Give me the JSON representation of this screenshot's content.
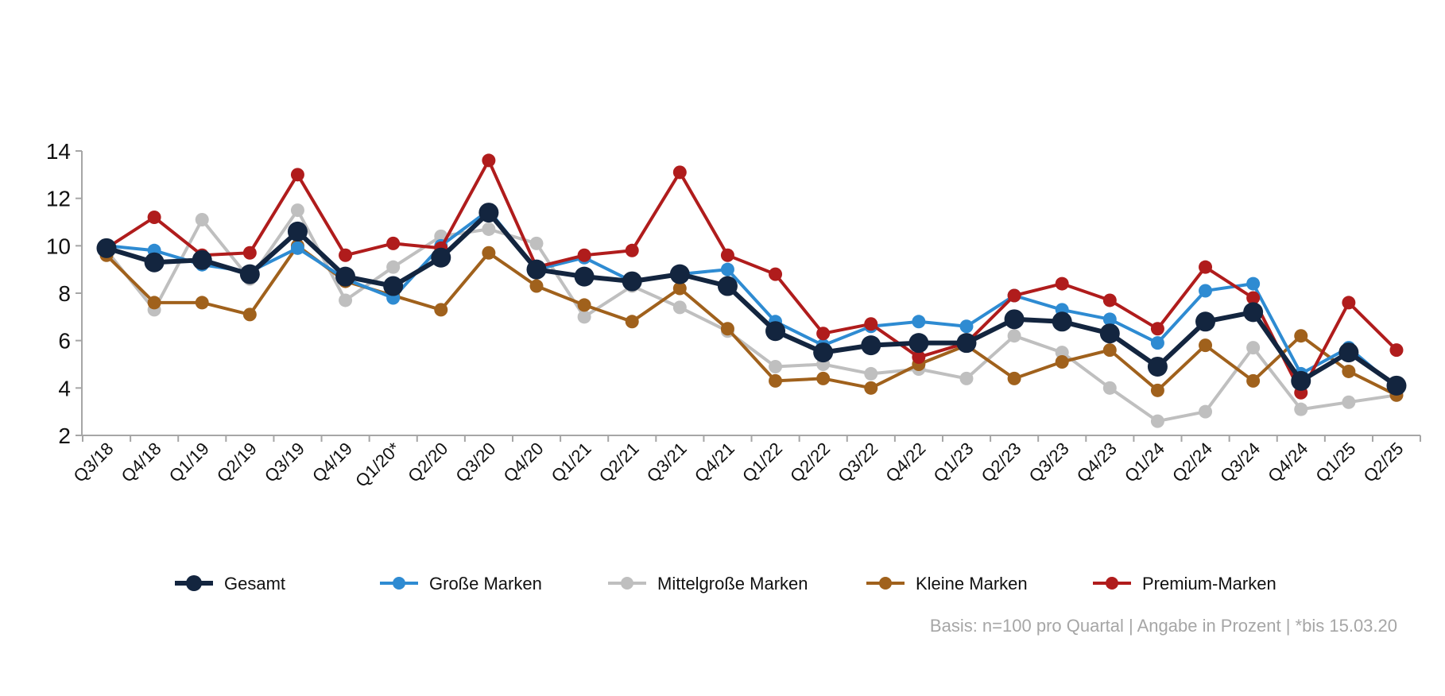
{
  "chart_data": {
    "type": "line",
    "categories": [
      "Q3/18",
      "Q4/18",
      "Q1/19",
      "Q2/19",
      "Q3/19",
      "Q4/19",
      "Q1/20*",
      "Q2/20",
      "Q3/20",
      "Q4/20",
      "Q1/21",
      "Q2/21",
      "Q3/21",
      "Q4/21",
      "Q1/22",
      "Q2/22",
      "Q3/22",
      "Q4/22",
      "Q1/23",
      "Q2/23",
      "Q3/23",
      "Q4/23",
      "Q1/24",
      "Q2/24",
      "Q3/24",
      "Q4/24",
      "Q1/25",
      "Q2/25"
    ],
    "ylim": [
      2,
      14
    ],
    "yticks": [
      2,
      4,
      6,
      8,
      10,
      12,
      14
    ],
    "grid": false,
    "legend_position": "bottom",
    "series": [
      {
        "name": "Mittelgroße Marken",
        "color": "#bfbfbf",
        "values": [
          9.8,
          7.3,
          11.1,
          8.6,
          11.5,
          7.7,
          9.1,
          10.4,
          10.7,
          10.1,
          7.0,
          8.3,
          7.4,
          6.4,
          4.9,
          5.0,
          4.6,
          4.8,
          4.4,
          6.2,
          5.5,
          4.0,
          2.6,
          3.0,
          5.7,
          3.1,
          3.4,
          3.7
        ]
      },
      {
        "name": "Kleine Marken",
        "color": "#a0611c",
        "values": [
          9.6,
          7.6,
          7.6,
          7.1,
          10.0,
          8.5,
          7.9,
          7.3,
          9.7,
          8.3,
          7.5,
          6.8,
          8.2,
          6.5,
          4.3,
          4.4,
          4.0,
          5.0,
          5.8,
          4.4,
          5.1,
          5.6,
          3.9,
          5.8,
          4.3,
          6.2,
          4.7,
          3.7
        ]
      },
      {
        "name": "Große Marken",
        "color": "#2e8bd2",
        "values": [
          10.0,
          9.8,
          9.2,
          8.9,
          9.9,
          8.6,
          7.8,
          10.0,
          11.5,
          9.0,
          9.5,
          8.5,
          8.8,
          9.0,
          6.8,
          5.8,
          6.6,
          6.8,
          6.6,
          7.9,
          7.3,
          6.9,
          5.9,
          8.1,
          8.4,
          4.6,
          5.7,
          4.0
        ]
      },
      {
        "name": "Premium-Marken",
        "color": "#b01c1c",
        "values": [
          9.9,
          11.2,
          9.6,
          9.7,
          13.0,
          9.6,
          10.1,
          9.9,
          13.6,
          9.1,
          9.6,
          9.8,
          13.1,
          9.6,
          8.8,
          6.3,
          6.7,
          5.3,
          5.9,
          7.9,
          8.4,
          7.7,
          6.5,
          9.1,
          7.8,
          3.8,
          7.6,
          5.6
        ]
      },
      {
        "name": "Gesamt",
        "color": "#13253f",
        "values": [
          9.9,
          9.3,
          9.4,
          8.8,
          10.6,
          8.7,
          8.3,
          9.5,
          11.4,
          9.0,
          8.7,
          8.5,
          8.8,
          8.3,
          6.4,
          5.5,
          5.8,
          5.9,
          5.9,
          6.9,
          6.8,
          6.3,
          4.9,
          6.8,
          7.2,
          4.3,
          5.5,
          4.1
        ]
      }
    ],
    "legend": [
      {
        "label": "Gesamt",
        "color": "#13253f"
      },
      {
        "label": "Große Marken",
        "color": "#2e8bd2"
      },
      {
        "label": "Mittelgroße Marken",
        "color": "#bfbfbf"
      },
      {
        "label": "Kleine Marken",
        "color": "#a0611c"
      },
      {
        "label": "Premium-Marken",
        "color": "#b01c1c"
      }
    ],
    "note": "Basis: n=100 pro Quartal | Angabe in Prozent | *bis 15.03.20"
  }
}
